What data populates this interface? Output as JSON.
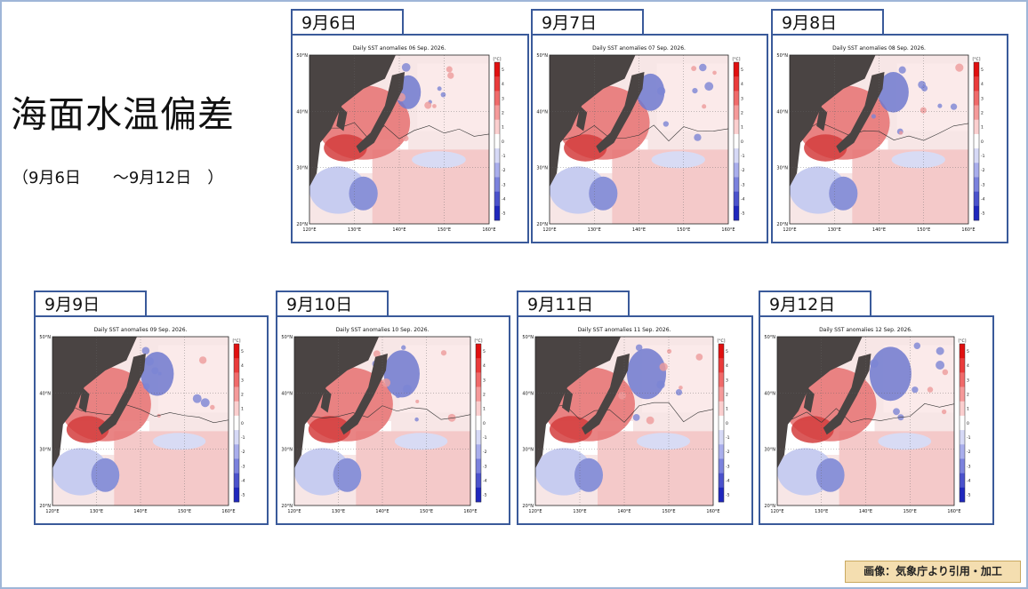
{
  "title": "海面水温偏差",
  "subtitle": "（9月6日　　～9月12日　）",
  "credit": "画像：気象庁より引用・加工",
  "map_labels": {
    "lat": [
      "50°N",
      "40°N",
      "30°N",
      "20°N"
    ],
    "lon": [
      "120°E",
      "130°E",
      "140°E",
      "150°E",
      "160°E"
    ],
    "unit": "[°C]",
    "scale": [
      "5",
      "4",
      "3",
      "2",
      "1",
      "0",
      "-1",
      "-2",
      "-3",
      "-4",
      "-5"
    ]
  },
  "colors": {
    "frame": "#9fb6d8",
    "panel_border": "#3a5a9a",
    "land": "#4a4443",
    "warm": "#e77777",
    "cool": "#6f79cf",
    "credit_bg": "#f4deb0"
  },
  "panels": [
    {
      "tab": "9月6日",
      "map_title": "Daily SST anomalies 06 Sep. 2026."
    },
    {
      "tab": "9月7日",
      "map_title": "Daily SST anomalies 07 Sep. 2026."
    },
    {
      "tab": "9月8日",
      "map_title": "Daily SST anomalies 08 Sep. 2026."
    },
    {
      "tab": "9月9日",
      "map_title": "Daily SST anomalies 09 Sep. 2026."
    },
    {
      "tab": "9月10日",
      "map_title": "Daily SST anomalies 10 Sep. 2026."
    },
    {
      "tab": "9月11日",
      "map_title": "Daily SST anomalies 11 Sep. 2026."
    },
    {
      "tab": "9月12日",
      "map_title": "Daily SST anomalies 12 Sep. 2026."
    }
  ]
}
